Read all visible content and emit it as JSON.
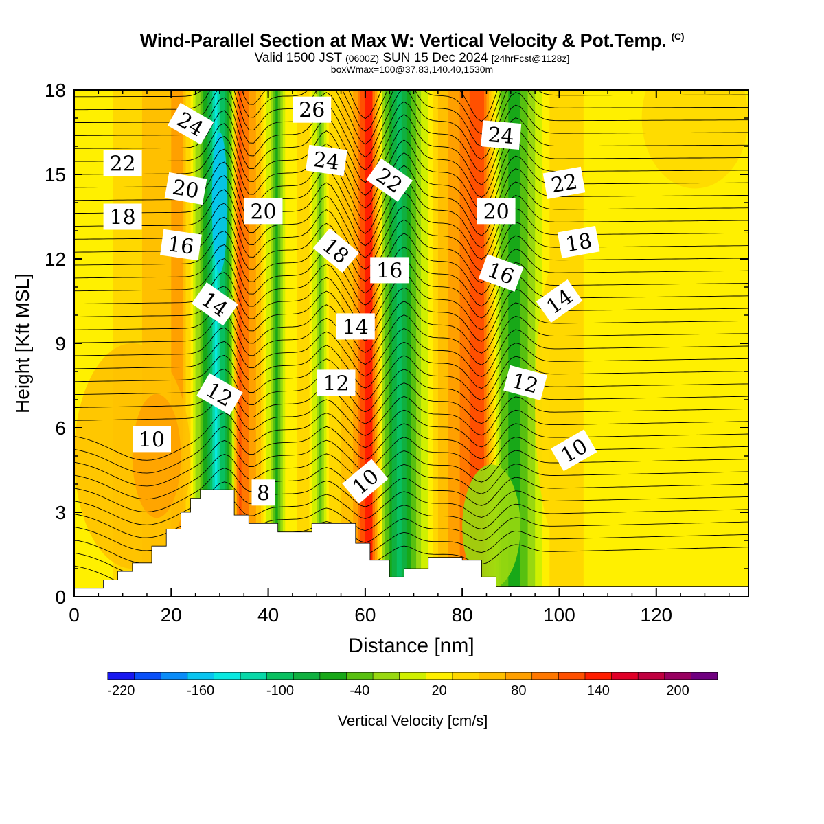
{
  "header": {
    "title": "Wind-Parallel Section at Max W: Vertical Velocity & Pot.Temp.",
    "copyright": "(C)",
    "valid_main": "Valid 1500 JST",
    "valid_utc": "(0600Z)",
    "valid_date": "SUN 15 Dec 2024",
    "forecast": "[24hrFcst@1128z]",
    "boxwmax": "boxWmax=100@37.83,140.40,1530m"
  },
  "chart_data": {
    "type": "heatmap",
    "xlabel": "Distance [nm]",
    "ylabel": "Height [Kft MSL]",
    "xlim": [
      0,
      139
    ],
    "ylim": [
      0,
      18
    ],
    "xticks": [
      "0",
      "20",
      "40",
      "60",
      "80",
      "100",
      "120"
    ],
    "yticks": [
      "0",
      "3",
      "6",
      "9",
      "12",
      "15",
      "18"
    ],
    "colorbar": {
      "label": "Vertical Velocity [cm/s]",
      "tick_labels": [
        "-220",
        "-160",
        "-100",
        "-40",
        "20",
        "80",
        "140",
        "200"
      ],
      "levels": [
        -230,
        -210,
        -190,
        -170,
        -150,
        -130,
        -110,
        -90,
        -70,
        -50,
        -30,
        -10,
        10,
        30,
        50,
        70,
        90,
        110,
        130,
        150,
        170,
        190,
        210,
        230
      ],
      "colors": [
        "#1818f0",
        "#0a50f8",
        "#0a8cf8",
        "#08c4f0",
        "#08e8e0",
        "#08d8a8",
        "#08c060",
        "#10b040",
        "#18a818",
        "#58c010",
        "#98d810",
        "#d0f000",
        "#fff000",
        "#ffd800",
        "#ffc000",
        "#ffa000",
        "#ff7800",
        "#ff5000",
        "#ff1e00",
        "#e00028",
        "#c00040",
        "#980060",
        "#700080"
      ]
    },
    "vertical_velocity_columns": [
      {
        "x": 22,
        "value": 80
      },
      {
        "x": 27,
        "value": -60
      },
      {
        "x": 29,
        "value": -140
      },
      {
        "x": 32,
        "value": -60
      },
      {
        "x": 34,
        "value": 120
      },
      {
        "x": 38,
        "value": 60
      },
      {
        "x": 42,
        "value": -60
      },
      {
        "x": 44,
        "value": 20
      },
      {
        "x": 48,
        "value": 40
      },
      {
        "x": 51,
        "value": -40
      },
      {
        "x": 53,
        "value": 40
      },
      {
        "x": 57,
        "value": 60
      },
      {
        "x": 61,
        "value": 150
      },
      {
        "x": 64,
        "value": -30
      },
      {
        "x": 67,
        "value": -100
      },
      {
        "x": 70,
        "value": -40
      },
      {
        "x": 75,
        "value": 50
      },
      {
        "x": 84,
        "value": 130
      },
      {
        "x": 88,
        "value": -40
      },
      {
        "x": 91,
        "value": -60
      },
      {
        "x": 99,
        "value": 40
      },
      {
        "x": 111,
        "value": 20
      },
      {
        "x": 130,
        "value": 20
      }
    ],
    "potential_temperature_contour_labels": [
      "8",
      "10",
      "12",
      "14",
      "16",
      "18",
      "20",
      "22",
      "24",
      "26"
    ],
    "label_positions_data": [
      {
        "text": "10",
        "x": 16,
        "y": 5.6,
        "angle": 0
      },
      {
        "text": "10",
        "x": 60,
        "y": 4.1,
        "angle": -40
      },
      {
        "text": "10",
        "x": 103,
        "y": 5.2,
        "angle": -30
      },
      {
        "text": "8",
        "x": 39,
        "y": 3.7,
        "angle": 0
      },
      {
        "text": "12",
        "x": 30,
        "y": 7.2,
        "angle": 30
      },
      {
        "text": "12",
        "x": 54,
        "y": 7.6,
        "angle": 0
      },
      {
        "text": "12",
        "x": 93,
        "y": 7.6,
        "angle": 15
      },
      {
        "text": "14",
        "x": 29,
        "y": 10.4,
        "angle": 35
      },
      {
        "text": "14",
        "x": 58,
        "y": 9.6,
        "angle": 0
      },
      {
        "text": "14",
        "x": 100,
        "y": 10.5,
        "angle": -35
      },
      {
        "text": "16",
        "x": 22,
        "y": 12.5,
        "angle": 8
      },
      {
        "text": "16",
        "x": 65,
        "y": 11.6,
        "angle": 0
      },
      {
        "text": "16",
        "x": 88,
        "y": 11.5,
        "angle": 20
      },
      {
        "text": "18",
        "x": 10,
        "y": 13.5,
        "angle": 0
      },
      {
        "text": "18",
        "x": 54,
        "y": 12.3,
        "angle": 40
      },
      {
        "text": "18",
        "x": 104,
        "y": 12.6,
        "angle": -10
      },
      {
        "text": "20",
        "x": 23,
        "y": 14.5,
        "angle": 10
      },
      {
        "text": "20",
        "x": 39,
        "y": 13.7,
        "angle": 0
      },
      {
        "text": "20",
        "x": 87,
        "y": 13.7,
        "angle": 0
      },
      {
        "text": "22",
        "x": 10,
        "y": 15.4,
        "angle": 0
      },
      {
        "text": "22",
        "x": 65,
        "y": 14.8,
        "angle": 35
      },
      {
        "text": "22",
        "x": 101,
        "y": 14.7,
        "angle": -10
      },
      {
        "text": "24",
        "x": 24,
        "y": 16.8,
        "angle": 30
      },
      {
        "text": "24",
        "x": 52,
        "y": 15.5,
        "angle": 8
      },
      {
        "text": "24",
        "x": 88,
        "y": 16.4,
        "angle": 5
      },
      {
        "text": "26",
        "x": 49,
        "y": 17.3,
        "angle": 0
      }
    ],
    "terrain": [
      [
        0,
        0.3
      ],
      [
        5,
        0.3
      ],
      [
        6,
        0.6
      ],
      [
        9,
        0.9
      ],
      [
        12,
        1.2
      ],
      [
        16,
        1.8
      ],
      [
        19,
        2.4
      ],
      [
        22,
        3.0
      ],
      [
        24,
        3.5
      ],
      [
        26,
        3.8
      ],
      [
        30,
        3.8
      ],
      [
        33,
        2.9
      ],
      [
        36,
        2.6
      ],
      [
        42,
        2.3
      ],
      [
        49,
        2.6
      ],
      [
        58,
        1.9
      ],
      [
        61,
        1.3
      ],
      [
        65,
        0.7
      ],
      [
        68,
        1.0
      ],
      [
        73,
        1.4
      ],
      [
        80,
        1.3
      ],
      [
        84,
        0.7
      ],
      [
        87,
        0.35
      ],
      [
        139,
        0.35
      ]
    ]
  }
}
